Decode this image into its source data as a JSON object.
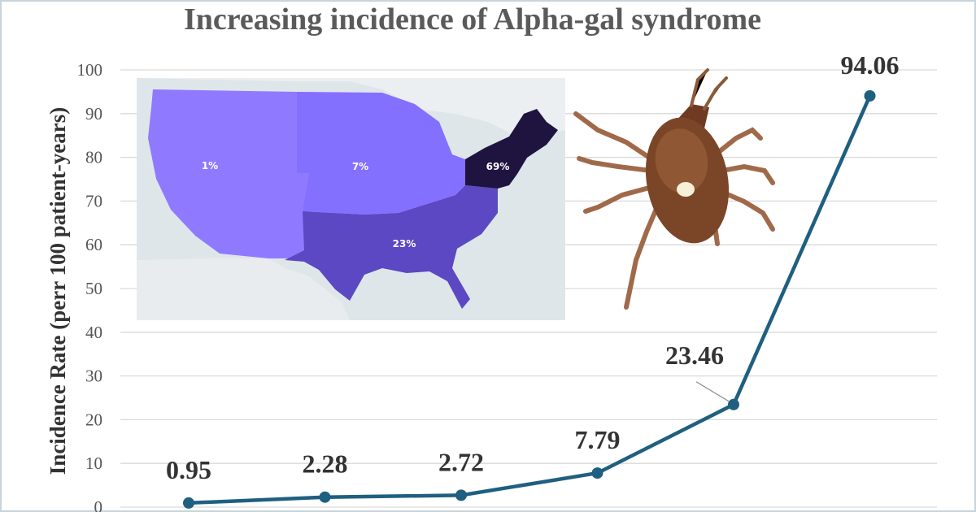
{
  "chart_data": {
    "type": "line",
    "title": "Increasing incidence of Alpha-gal syndrome",
    "ylabel": "Incidence Rate (perr 100 patient-years)",
    "xlabel": "",
    "ylim": [
      0,
      100
    ],
    "y_ticks": [
      0,
      10,
      20,
      30,
      40,
      50,
      60,
      70,
      80,
      90,
      100
    ],
    "grid": true,
    "line_color": "#1f5f80",
    "points": [
      {
        "value": 0.95,
        "label": "0.95"
      },
      {
        "value": 2.28,
        "label": "2.28"
      },
      {
        "value": 2.72,
        "label": "2.72"
      },
      {
        "value": 7.79,
        "label": "7.79"
      },
      {
        "value": 23.46,
        "label": "23.46"
      },
      {
        "value": 94.06,
        "label": "94.06"
      }
    ]
  },
  "map_inset": {
    "regions": [
      {
        "name": "west",
        "label": "1%",
        "color": "#8f7aff"
      },
      {
        "name": "midwest",
        "label": "7%",
        "color": "#8470ff"
      },
      {
        "name": "south",
        "label": "23%",
        "color": "#5b48c2"
      },
      {
        "name": "northeast",
        "label": "69%",
        "color": "#1f1440"
      }
    ]
  }
}
